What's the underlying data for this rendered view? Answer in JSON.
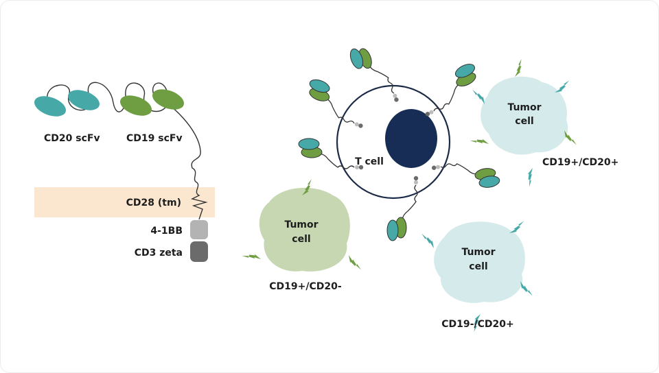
{
  "construct": {
    "cd20_label": "CD20 scFv",
    "cd19_label": "CD19 scFv",
    "tm_label": "CD28 (tm)",
    "costim_label": "4-1BB",
    "signal_label": "CD3 zeta"
  },
  "tcell": {
    "label": "T cell"
  },
  "tumors": [
    {
      "title_line1": "Tumor",
      "title_line2": "cell",
      "phenotype": "CD19+/CD20+"
    },
    {
      "title_line1": "Tumor",
      "title_line2": "cell",
      "phenotype": "CD19+/CD20-"
    },
    {
      "title_line1": "Tumor",
      "title_line2": "cell",
      "phenotype": "CD19-/CD20+"
    }
  ],
  "colors": {
    "cd20_teal": "#46a9a8",
    "cd19_green": "#6e9d42",
    "nucleus": "#172d55",
    "tm_band": "#fbe7d0",
    "tumor_blue": "#d5eaea",
    "tumor_green": "#c6d7b2",
    "costim_gray": "#b3b3b3",
    "signal_gray": "#6b6b6b"
  }
}
